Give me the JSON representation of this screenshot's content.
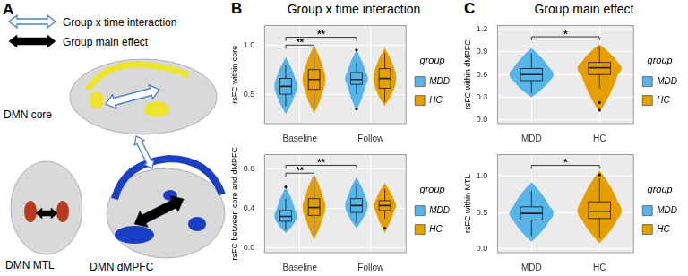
{
  "diagram": {
    "panel_label": "A",
    "legend": [
      {
        "text": "Group x time interaction",
        "style": "hollow",
        "color": "#4A7FC1"
      },
      {
        "text": "Group main effect",
        "style": "solid",
        "color": "#000000"
      }
    ],
    "regions": [
      {
        "label": "DMN core",
        "color": "#EDE430"
      },
      {
        "label": "DMN MTL",
        "color": "#B83A1E"
      },
      {
        "label": "DMN dMPFC",
        "color": "#1A3FC4"
      }
    ]
  },
  "chart_data": [
    {
      "type": "violin",
      "panel_label": "B",
      "title": "Group x time interaction",
      "y_label": "rsFC within core",
      "categories": [
        "Baseline",
        "Follow"
      ],
      "ylim": [
        0.2,
        1.2
      ],
      "yticks": [
        0.5,
        {
          "value": 1,
          "label": "1.0"
        }
      ],
      "grid": true,
      "legend": "right",
      "legend_title": "group",
      "series": [
        {
          "name": "MDD",
          "color": "#56B4E9",
          "violin_low": [
            0.3,
            0.33
          ],
          "violin_high": [
            0.88,
            0.95
          ],
          "whisker_low": [
            0.38,
            0.5
          ],
          "q1": [
            0.5,
            0.6
          ],
          "median": [
            0.58,
            0.65
          ],
          "q3": [
            0.66,
            0.72
          ],
          "whisker_high": [
            0.8,
            0.82
          ],
          "outliers": [
            [],
            [
              0.95,
              0.35
            ]
          ]
        },
        {
          "name": "HC",
          "color": "#E69F00",
          "violin_low": [
            0.3,
            0.38
          ],
          "violin_high": [
            1.0,
            0.97
          ],
          "whisker_low": [
            0.35,
            0.42
          ],
          "q1": [
            0.55,
            0.56
          ],
          "median": [
            0.65,
            0.66
          ],
          "q3": [
            0.75,
            0.76
          ],
          "whisker_high": [
            0.95,
            0.92
          ],
          "outliers": [
            [],
            []
          ]
        }
      ],
      "annotations": [
        {
          "text": "**",
          "from": [
            0,
            0
          ],
          "to": [
            0,
            1
          ],
          "y": 1.0
        },
        {
          "text": "**",
          "from": [
            0,
            0
          ],
          "to": [
            1,
            0
          ],
          "y": 1.08
        }
      ]
    },
    {
      "type": "violin",
      "y_label": "rsFC between core and dMPFC",
      "categories": [
        "Baseline",
        "Follow"
      ],
      "ylim": [
        -0.05,
        0.95
      ],
      "yticks": [
        {
          "value": 0,
          "label": "0.0"
        },
        0.4,
        0.8
      ],
      "grid": true,
      "legend": "right",
      "legend_title": "group",
      "series": [
        {
          "name": "MDD",
          "color": "#56B4E9",
          "violin_low": [
            0.15,
            0.2
          ],
          "violin_high": [
            0.62,
            0.72
          ],
          "whisker_low": [
            0.18,
            0.25
          ],
          "q1": [
            0.27,
            0.36
          ],
          "median": [
            0.32,
            0.43
          ],
          "q3": [
            0.38,
            0.5
          ],
          "whisker_high": [
            0.5,
            0.65
          ],
          "outliers": [
            [
              0.62
            ],
            []
          ]
        },
        {
          "name": "HC",
          "color": "#E69F00",
          "violin_low": [
            0.08,
            0.15
          ],
          "violin_high": [
            0.75,
            0.66
          ],
          "whisker_low": [
            0.12,
            0.3
          ],
          "q1": [
            0.33,
            0.38
          ],
          "median": [
            0.41,
            0.43
          ],
          "q3": [
            0.5,
            0.48
          ],
          "whisker_high": [
            0.72,
            0.6
          ],
          "outliers": [
            [],
            [
              0.2
            ]
          ]
        }
      ],
      "annotations": [
        {
          "text": "**",
          "from": [
            0,
            0
          ],
          "to": [
            0,
            1
          ],
          "y": 0.76
        },
        {
          "text": "**",
          "from": [
            0,
            0
          ],
          "to": [
            1,
            0
          ],
          "y": 0.84
        }
      ]
    },
    {
      "type": "violin",
      "panel_label": "C",
      "title": "Group main effect",
      "y_label": "rsFC within dMPFC",
      "categories": [
        "MDD",
        "HC"
      ],
      "ylim": [
        -0.05,
        1.25
      ],
      "yticks": [
        {
          "value": 0,
          "label": "0.0"
        },
        0.3,
        0.6,
        0.9,
        1.2
      ],
      "grid": true,
      "legend": "right",
      "legend_title": "group",
      "series": [
        {
          "name": "MDD",
          "color": "#56B4E9",
          "violin_low": [
            0.3,
            null
          ],
          "violin_high": [
            0.95,
            null
          ],
          "whisker_low": [
            0.35,
            null
          ],
          "q1": [
            0.52,
            null
          ],
          "median": [
            0.6,
            null
          ],
          "q3": [
            0.68,
            null
          ],
          "whisker_high": [
            0.88,
            null
          ],
          "outliers": [
            [],
            []
          ]
        },
        {
          "name": "HC",
          "color": "#E69F00",
          "violin_low": [
            null,
            0.1
          ],
          "violin_high": [
            null,
            1.0
          ],
          "whisker_low": [
            null,
            0.42
          ],
          "q1": [
            null,
            0.6
          ],
          "median": [
            null,
            0.69
          ],
          "q3": [
            null,
            0.76
          ],
          "whisker_high": [
            null,
            0.97
          ],
          "outliers": [
            [],
            [
              0.13,
              0.23
            ]
          ]
        }
      ],
      "annotations": [
        {
          "text": "*",
          "from": [
            0,
            0
          ],
          "to": [
            1,
            1
          ],
          "y": 1.1
        }
      ]
    },
    {
      "type": "violin",
      "y_label": "rsFC within MTL",
      "categories": [
        "MDD",
        "HC"
      ],
      "ylim": [
        -0.05,
        1.3
      ],
      "yticks": [
        {
          "value": 0,
          "label": "0.0"
        },
        0.5,
        {
          "value": 1,
          "label": "1.0"
        }
      ],
      "grid": true,
      "legend": "right",
      "legend_title": "group",
      "series": [
        {
          "name": "MDD",
          "color": "#56B4E9",
          "violin_low": [
            0.1,
            null
          ],
          "violin_high": [
            0.92,
            null
          ],
          "whisker_low": [
            0.18,
            null
          ],
          "q1": [
            0.4,
            null
          ],
          "median": [
            0.49,
            null
          ],
          "q3": [
            0.58,
            null
          ],
          "whisker_high": [
            0.8,
            null
          ],
          "outliers": [
            [],
            []
          ]
        },
        {
          "name": "HC",
          "color": "#E69F00",
          "violin_low": [
            null,
            0.08
          ],
          "violin_high": [
            null,
            1.08
          ],
          "whisker_low": [
            null,
            0.15
          ],
          "q1": [
            null,
            0.42
          ],
          "median": [
            null,
            0.52
          ],
          "q3": [
            null,
            0.65
          ],
          "whisker_high": [
            null,
            0.97
          ],
          "outliers": [
            [],
            [
              1.02
            ]
          ]
        }
      ],
      "annotations": [
        {
          "text": "*",
          "from": [
            0,
            0
          ],
          "to": [
            1,
            1
          ],
          "y": 1.15
        }
      ]
    }
  ]
}
